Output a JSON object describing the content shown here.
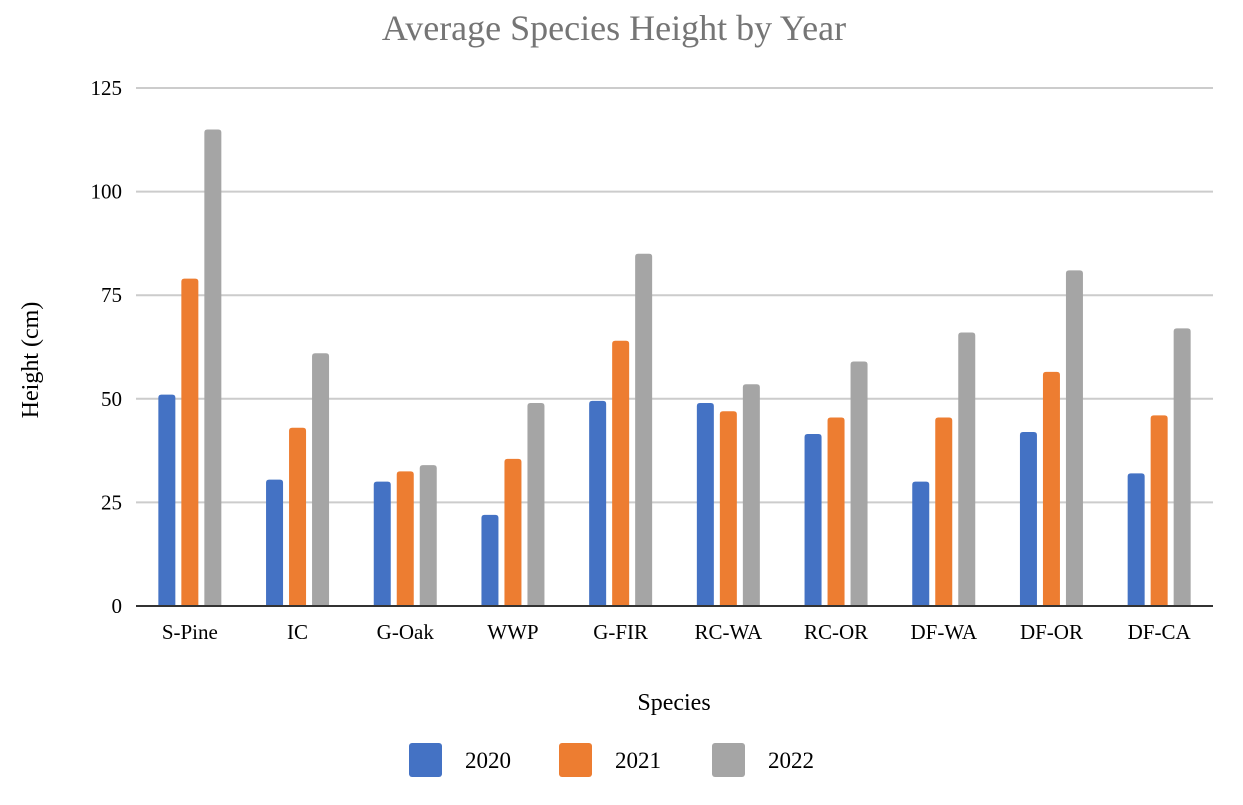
{
  "chart_data": {
    "type": "bar",
    "title": "Average Species Height by Year",
    "xlabel": "Species",
    "ylabel": "Height (cm)",
    "categories": [
      "S-Pine",
      "IC",
      "G-Oak",
      "WWP",
      "G-FIR",
      "RC-WA",
      "RC-OR",
      "DF-WA",
      "DF-OR",
      "DF-CA"
    ],
    "series": [
      {
        "name": "2020",
        "color": "#4472c4",
        "values": [
          51,
          30.5,
          30,
          22,
          49.5,
          49,
          41.5,
          30,
          42,
          32
        ]
      },
      {
        "name": "2021",
        "color": "#ed7d31",
        "values": [
          79,
          43,
          32.5,
          35.5,
          64,
          47,
          45.5,
          45.5,
          56.5,
          46
        ]
      },
      {
        "name": "2022",
        "color": "#a5a5a5",
        "values": [
          115,
          61,
          34,
          49,
          85,
          53.5,
          59,
          66,
          81,
          67
        ]
      }
    ],
    "ylim": [
      0,
      125
    ],
    "yticks": [
      "0",
      "25",
      "50",
      "75",
      "100",
      "125"
    ],
    "grid": true,
    "legend_position": "bottom"
  }
}
